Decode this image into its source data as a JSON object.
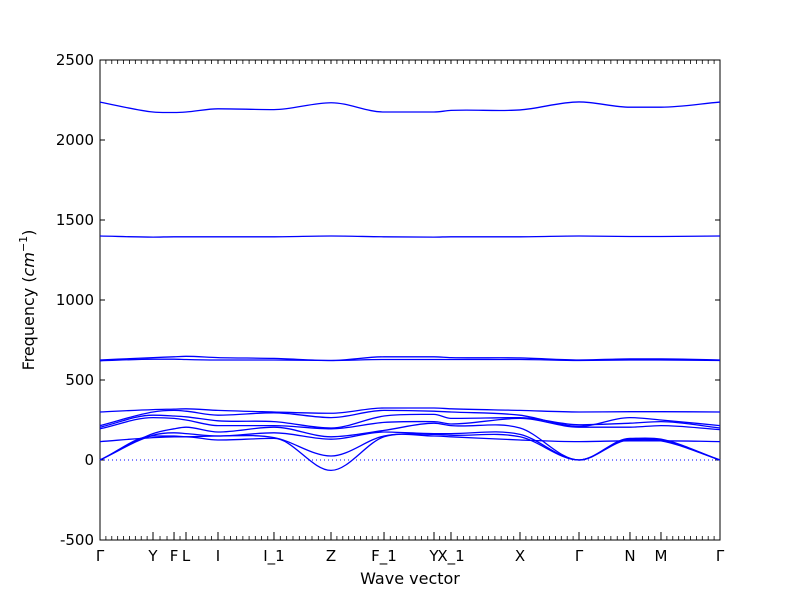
{
  "chart_data": {
    "type": "line",
    "xlabel": "Wave vector",
    "ylabel": "Frequency",
    "ylabel_unit": "cm",
    "ylabel_unit_exp": "−1",
    "ylim": [
      -500,
      2500
    ],
    "yticks": [
      -500,
      0,
      500,
      1000,
      1500,
      2000,
      2500
    ],
    "grid": false,
    "legend": "none",
    "line_color": "#0000ff",
    "zero_line_color": "#0000ff",
    "kpoints": [
      {
        "label": "Γ",
        "x": 0.0
      },
      {
        "label": "Y",
        "x": 0.0855
      },
      {
        "label": "F",
        "x": 0.1194
      },
      {
        "label": "L",
        "x": 0.1387
      },
      {
        "label": "I",
        "x": 0.1903
      },
      {
        "label": "I_1",
        "x": 0.2806
      },
      {
        "label": "Z",
        "x": 0.3726
      },
      {
        "label": "F_1",
        "x": 0.4581
      },
      {
        "label": "Y",
        "x": 0.5387
      },
      {
        "label": "X_1",
        "x": 0.5661
      },
      {
        "label": "X",
        "x": 0.6774
      },
      {
        "label": "Γ",
        "x": 0.7726
      },
      {
        "label": "N",
        "x": 0.8548
      },
      {
        "label": "M",
        "x": 0.9048
      },
      {
        "label": "Γ",
        "x": 1.0
      }
    ],
    "x": [
      0,
      0.0855,
      0.1194,
      0.1387,
      0.1903,
      0.2806,
      0.3726,
      0.4581,
      0.5387,
      0.5661,
      0.6774,
      0.7726,
      0.8548,
      0.9048,
      1.0
    ],
    "series": [
      {
        "values": [
          2237,
          2175,
          2172,
          2175,
          2195,
          2190,
          2233,
          2175,
          2175,
          2185,
          2188,
          2238,
          2205,
          2205,
          2237
        ]
      },
      {
        "values": [
          1400,
          1393,
          1395,
          1395,
          1395,
          1395,
          1400,
          1395,
          1393,
          1395,
          1395,
          1400,
          1397,
          1397,
          1400
        ]
      },
      {
        "values": [
          625,
          640,
          645,
          648,
          640,
          635,
          622,
          645,
          645,
          640,
          638,
          625,
          632,
          632,
          625
        ]
      },
      {
        "values": [
          620,
          630,
          630,
          628,
          625,
          625,
          622,
          628,
          628,
          628,
          628,
          622,
          625,
          625,
          622
        ]
      },
      {
        "values": [
          300,
          315,
          318,
          320,
          310,
          300,
          292,
          325,
          325,
          320,
          310,
          300,
          302,
          302,
          300
        ]
      },
      {
        "values": [
          215,
          300,
          310,
          305,
          280,
          295,
          265,
          310,
          305,
          300,
          280,
          210,
          265,
          250,
          215
        ]
      },
      {
        "values": [
          205,
          280,
          275,
          270,
          245,
          240,
          200,
          275,
          285,
          260,
          265,
          220,
          230,
          240,
          200
        ]
      },
      {
        "values": [
          195,
          265,
          260,
          250,
          215,
          215,
          195,
          235,
          240,
          225,
          260,
          205,
          205,
          215,
          190
        ]
      },
      {
        "values": [
          0,
          165,
          195,
          205,
          175,
          205,
          145,
          185,
          230,
          215,
          200,
          0,
          135,
          130,
          0
        ]
      },
      {
        "values": [
          0,
          155,
          170,
          165,
          150,
          170,
          130,
          175,
          165,
          165,
          160,
          0,
          130,
          125,
          0
        ]
      },
      {
        "values": [
          0,
          150,
          150,
          145,
          150,
          140,
          25,
          150,
          160,
          155,
          145,
          0,
          125,
          120,
          0
        ]
      },
      {
        "values": [
          115,
          140,
          145,
          145,
          125,
          135,
          -65,
          145,
          150,
          145,
          125,
          115,
          120,
          120,
          115
        ]
      }
    ]
  }
}
